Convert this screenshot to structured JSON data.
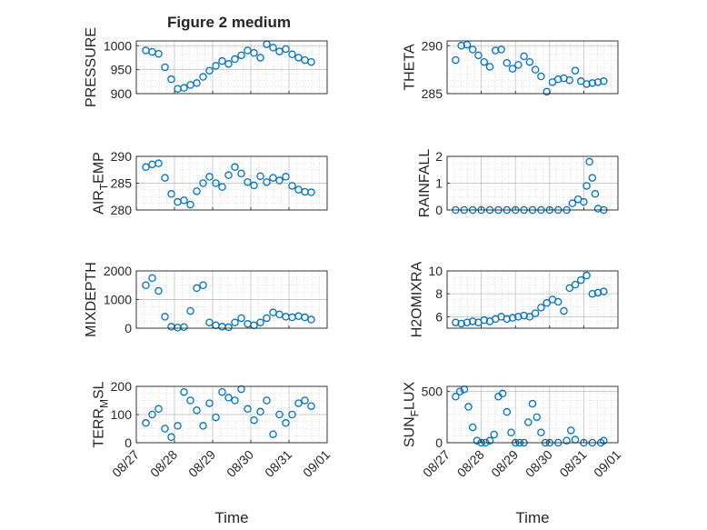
{
  "figure": {
    "title": "Figure 2 medium",
    "xlabel": "Time",
    "date_ticks": [
      "08/27",
      "08/28",
      "08/29",
      "08/30",
      "08/31",
      "09/01"
    ],
    "colors": {
      "marker": "#0072BD",
      "axis": "#262626",
      "grid": "#c8c8c8",
      "background": "#ffffff"
    }
  },
  "chart_data": [
    {
      "id": "pressure",
      "type": "scatter",
      "ylabel": "PRESSURE",
      "position": "left-row1",
      "ylim": [
        900,
        1010
      ],
      "yticks": [
        900,
        950,
        1000
      ],
      "grid": true,
      "x": [
        "08/27 06:00",
        "08/27 10:00",
        "08/27 14:00",
        "08/27 18:00",
        "08/27 22:00",
        "08/28 02:00",
        "08/28 06:00",
        "08/28 10:00",
        "08/28 14:00",
        "08/28 18:00",
        "08/28 22:00",
        "08/29 02:00",
        "08/29 06:00",
        "08/29 10:00",
        "08/29 14:00",
        "08/29 18:00",
        "08/29 22:00",
        "08/30 02:00",
        "08/30 06:00",
        "08/30 10:00",
        "08/30 14:00",
        "08/30 18:00",
        "08/30 22:00",
        "08/31 02:00",
        "08/31 06:00",
        "08/31 10:00",
        "08/31 14:00"
      ],
      "y": [
        990,
        987,
        983,
        955,
        930,
        910,
        912,
        918,
        922,
        935,
        948,
        958,
        968,
        962,
        972,
        980,
        990,
        985,
        975,
        1003,
        996,
        988,
        993,
        982,
        975,
        970,
        966
      ]
    },
    {
      "id": "theta",
      "type": "scatter",
      "ylabel": "THETA",
      "position": "right-row1",
      "ylim": [
        285,
        290.5
      ],
      "yticks": [
        285,
        290
      ],
      "grid": true,
      "x": [
        "08/27 06:00",
        "08/27 10:00",
        "08/27 14:00",
        "08/27 18:00",
        "08/27 22:00",
        "08/28 02:00",
        "08/28 06:00",
        "08/28 10:00",
        "08/28 14:00",
        "08/28 18:00",
        "08/28 22:00",
        "08/29 02:00",
        "08/29 06:00",
        "08/29 10:00",
        "08/29 14:00",
        "08/29 18:00",
        "08/29 22:00",
        "08/30 02:00",
        "08/30 06:00",
        "08/30 10:00",
        "08/30 14:00",
        "08/30 18:00",
        "08/30 22:00",
        "08/31 02:00",
        "08/31 06:00",
        "08/31 10:00",
        "08/31 14:00"
      ],
      "y": [
        288.5,
        290.0,
        290.1,
        289.6,
        289.0,
        288.3,
        287.8,
        289.5,
        289.6,
        288.2,
        287.6,
        288.0,
        288.9,
        288.3,
        287.5,
        286.8,
        285.2,
        286.2,
        286.5,
        286.6,
        286.4,
        287.4,
        286.3,
        286.0,
        286.1,
        286.2,
        286.3
      ]
    },
    {
      "id": "air_temp",
      "type": "scatter",
      "ylabel": "AIR",
      "ylabel_sub": "T",
      "ylabel_tail": "EMP",
      "position": "left-row2",
      "ylim": [
        280,
        290
      ],
      "yticks": [
        280,
        285,
        290
      ],
      "grid": true,
      "x": [
        "08/27 06:00",
        "08/27 10:00",
        "08/27 14:00",
        "08/27 18:00",
        "08/27 22:00",
        "08/28 02:00",
        "08/28 06:00",
        "08/28 10:00",
        "08/28 14:00",
        "08/28 18:00",
        "08/28 22:00",
        "08/29 02:00",
        "08/29 06:00",
        "08/29 10:00",
        "08/29 14:00",
        "08/29 18:00",
        "08/29 22:00",
        "08/30 02:00",
        "08/30 06:00",
        "08/30 10:00",
        "08/30 14:00",
        "08/30 18:00",
        "08/30 22:00",
        "08/31 02:00",
        "08/31 06:00",
        "08/31 10:00",
        "08/31 14:00"
      ],
      "y": [
        288.0,
        288.5,
        288.7,
        286.0,
        283.0,
        281.5,
        281.8,
        281.0,
        283.5,
        285.0,
        286.2,
        285.0,
        284.3,
        286.5,
        288.0,
        286.8,
        285.2,
        284.6,
        286.3,
        285.2,
        286.0,
        285.5,
        286.2,
        284.5,
        283.8,
        283.4,
        283.3
      ]
    },
    {
      "id": "rainfall",
      "type": "scatter",
      "ylabel": "RAINFALL",
      "position": "right-row2",
      "ylim": [
        0,
        2
      ],
      "yticks": [
        0,
        1,
        2
      ],
      "grid": true,
      "x": [
        "08/27 06:00",
        "08/27 12:00",
        "08/27 18:00",
        "08/28 00:00",
        "08/28 06:00",
        "08/28 12:00",
        "08/28 18:00",
        "08/29 00:00",
        "08/29 06:00",
        "08/29 12:00",
        "08/29 18:00",
        "08/30 00:00",
        "08/30 06:00",
        "08/30 12:00",
        "08/30 16:00",
        "08/30 20:00",
        "08/31 00:00",
        "08/31 02:00",
        "08/31 04:00",
        "08/31 06:00",
        "08/31 08:00",
        "08/31 10:00",
        "08/31 14:00"
      ],
      "y": [
        0,
        0,
        0,
        0,
        0,
        0,
        0,
        0,
        0,
        0,
        0,
        0,
        0,
        0,
        0.25,
        0.4,
        0.3,
        0.9,
        1.8,
        1.2,
        0.6,
        0.05,
        0
      ]
    },
    {
      "id": "mixdepth",
      "type": "scatter",
      "ylabel": "MIXDEPTH",
      "position": "left-row3",
      "ylim": [
        0,
        2000
      ],
      "yticks": [
        0,
        1000,
        2000
      ],
      "grid": true,
      "x": [
        "08/27 06:00",
        "08/27 10:00",
        "08/27 14:00",
        "08/27 18:00",
        "08/27 22:00",
        "08/28 02:00",
        "08/28 06:00",
        "08/28 10:00",
        "08/28 14:00",
        "08/28 18:00",
        "08/28 22:00",
        "08/29 02:00",
        "08/29 06:00",
        "08/29 10:00",
        "08/29 14:00",
        "08/29 18:00",
        "08/29 22:00",
        "08/30 02:00",
        "08/30 06:00",
        "08/30 10:00",
        "08/30 14:00",
        "08/30 18:00",
        "08/30 22:00",
        "08/31 02:00",
        "08/31 06:00",
        "08/31 10:00",
        "08/31 14:00"
      ],
      "y": [
        1500,
        1750,
        1300,
        400,
        50,
        20,
        40,
        600,
        1400,
        1500,
        200,
        100,
        50,
        30,
        200,
        350,
        150,
        100,
        200,
        350,
        550,
        480,
        400,
        380,
        420,
        380,
        300
      ]
    },
    {
      "id": "h2omixra",
      "type": "scatter",
      "ylabel": "H2OMIXRA",
      "position": "right-row3",
      "ylim": [
        5,
        10
      ],
      "yticks": [
        6,
        8,
        10
      ],
      "grid": true,
      "x": [
        "08/27 06:00",
        "08/27 10:00",
        "08/27 14:00",
        "08/27 18:00",
        "08/27 22:00",
        "08/28 02:00",
        "08/28 06:00",
        "08/28 10:00",
        "08/28 14:00",
        "08/28 18:00",
        "08/28 22:00",
        "08/29 02:00",
        "08/29 06:00",
        "08/29 10:00",
        "08/29 14:00",
        "08/29 18:00",
        "08/29 22:00",
        "08/30 02:00",
        "08/30 06:00",
        "08/30 10:00",
        "08/30 14:00",
        "08/30 18:00",
        "08/30 22:00",
        "08/31 02:00",
        "08/31 06:00",
        "08/31 10:00",
        "08/31 14:00"
      ],
      "y": [
        5.5,
        5.4,
        5.5,
        5.6,
        5.5,
        5.7,
        5.6,
        5.8,
        6.0,
        5.8,
        5.9,
        6.0,
        6.1,
        6.0,
        6.3,
        6.8,
        7.2,
        7.5,
        7.3,
        6.5,
        8.5,
        8.8,
        9.2,
        9.6,
        8.0,
        8.1,
        8.2
      ]
    },
    {
      "id": "terr_msl",
      "type": "scatter",
      "ylabel": "TERR",
      "ylabel_sub": "M",
      "ylabel_tail": "SL",
      "position": "left-row4",
      "ylim": [
        0,
        200
      ],
      "yticks": [
        0,
        100,
        200
      ],
      "grid": true,
      "x": [
        "08/27 06:00",
        "08/27 10:00",
        "08/27 14:00",
        "08/27 18:00",
        "08/27 22:00",
        "08/28 02:00",
        "08/28 06:00",
        "08/28 10:00",
        "08/28 14:00",
        "08/28 18:00",
        "08/28 22:00",
        "08/29 02:00",
        "08/29 06:00",
        "08/29 10:00",
        "08/29 14:00",
        "08/29 18:00",
        "08/29 22:00",
        "08/30 02:00",
        "08/30 06:00",
        "08/30 10:00",
        "08/30 14:00",
        "08/30 18:00",
        "08/30 22:00",
        "08/31 02:00",
        "08/31 06:00",
        "08/31 10:00",
        "08/31 14:00"
      ],
      "y": [
        70,
        100,
        120,
        50,
        20,
        60,
        180,
        150,
        115,
        60,
        140,
        90,
        180,
        160,
        150,
        190,
        120,
        80,
        110,
        150,
        30,
        100,
        70,
        100,
        140,
        150,
        130
      ]
    },
    {
      "id": "sun_flux",
      "type": "scatter",
      "ylabel": "SUN",
      "ylabel_sub": "F",
      "ylabel_tail": "LUX",
      "position": "right-row4",
      "ylim": [
        0,
        550
      ],
      "yticks": [
        0,
        500
      ],
      "grid": true,
      "x": [
        "08/27 06:00",
        "08/27 09:00",
        "08/27 12:00",
        "08/27 15:00",
        "08/27 18:00",
        "08/27 21:00",
        "08/28 00:00",
        "08/28 03:00",
        "08/28 06:00",
        "08/28 09:00",
        "08/28 12:00",
        "08/28 15:00",
        "08/28 18:00",
        "08/28 21:00",
        "08/29 00:00",
        "08/29 03:00",
        "08/29 06:00",
        "08/29 09:00",
        "08/29 12:00",
        "08/29 15:00",
        "08/29 18:00",
        "08/29 21:00",
        "08/30 00:00",
        "08/30 06:00",
        "08/30 12:00",
        "08/30 15:00",
        "08/30 18:00",
        "08/31 00:00",
        "08/31 06:00",
        "08/31 12:00",
        "08/31 14:00"
      ],
      "y": [
        450,
        500,
        520,
        350,
        150,
        20,
        0,
        0,
        20,
        80,
        450,
        480,
        300,
        100,
        0,
        0,
        0,
        200,
        380,
        250,
        100,
        0,
        0,
        0,
        20,
        120,
        30,
        0,
        0,
        0,
        20
      ]
    }
  ]
}
